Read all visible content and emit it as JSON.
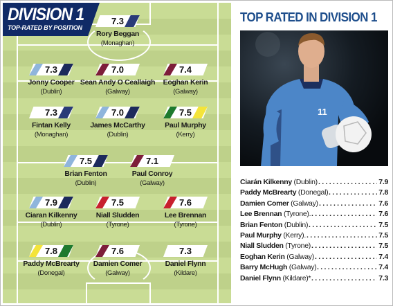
{
  "header": {
    "title": "DIVISION 1",
    "subtitle": "TOP-RATED BY POSITION"
  },
  "colors": {
    "navy": "#102a66",
    "title_blue": "#1e4e8c",
    "pitch_light": "#c9dc95",
    "pitch_dark": "#bed18a"
  },
  "team": [
    {
      "rating": "7.3",
      "name": "Rory Beggan",
      "county": "(Monaghan)",
      "stripe": [
        "#ffffff",
        "#2a3b78"
      ]
    },
    {
      "rating": "7.3",
      "name": "Jonny Cooper",
      "county": "(Dublin)",
      "stripe": [
        "#8fb5dc",
        "#1c2a5c"
      ]
    },
    {
      "rating": "7.0",
      "name": "Sean Andy O Ceallaigh",
      "county": "(Galway)",
      "stripe": [
        "#7d1e3a",
        "#ffffff"
      ]
    },
    {
      "rating": "7.4",
      "name": "Eoghan Kerin",
      "county": "(Galway)",
      "stripe": [
        "#7d1e3a",
        "#ffffff"
      ]
    },
    {
      "rating": "7.3",
      "name": "Fintan Kelly",
      "county": "(Monaghan)",
      "stripe": [
        "#ffffff",
        "#2a3b78"
      ]
    },
    {
      "rating": "7.0",
      "name": "James McCarthy",
      "county": "(Dublin)",
      "stripe": [
        "#8fb5dc",
        "#1c2a5c"
      ]
    },
    {
      "rating": "7.5",
      "name": "Paul Murphy",
      "county": "(Kerry)",
      "stripe": [
        "#1e7a2e",
        "#f4e43a"
      ]
    },
    {
      "rating": "7.5",
      "name": "Brian Fenton",
      "county": "(Dublin)",
      "stripe": [
        "#8fb5dc",
        "#1c2a5c"
      ]
    },
    {
      "rating": "7.1",
      "name": "Paul Conroy",
      "county": "(Galway)",
      "stripe": [
        "#7d1e3a",
        "#ffffff"
      ]
    },
    {
      "rating": "7.9",
      "name": "Ciaran Kilkenny",
      "county": "(Dublin)",
      "stripe": [
        "#8fb5dc",
        "#1c2a5c"
      ]
    },
    {
      "rating": "7.5",
      "name": "Niall Sludden",
      "county": "(Tyrone)",
      "stripe": [
        "#c8202e",
        "#ffffff"
      ]
    },
    {
      "rating": "7.6",
      "name": "Lee Brennan",
      "county": "(Tyrone)",
      "stripe": [
        "#c8202e",
        "#ffffff"
      ]
    },
    {
      "rating": "7.8",
      "name": "Paddy McBrearty",
      "county": "(Donegal)",
      "stripe": [
        "#f4e43a",
        "#1e7a2e"
      ]
    },
    {
      "rating": "7.6",
      "name": "Damien Comer",
      "county": "(Galway)",
      "stripe": [
        "#7d1e3a",
        "#ffffff"
      ]
    },
    {
      "rating": "7.3",
      "name": "Daniel Flynn",
      "county": "(Kildare)",
      "stripe": [
        "#ffffff",
        "#ffffff"
      ]
    }
  ],
  "panel": {
    "title": "TOP RATED IN DIVISION 1",
    "photo_subject": "Dublin footballer in blue jersey number 11 catching a ball",
    "jersey_number": "11",
    "list": [
      {
        "name": "Ciarán Kilkenny",
        "county": "(Dublin)",
        "rating": "7.9"
      },
      {
        "name": "Paddy McBrearty",
        "county": "(Donegal)",
        "rating": "7.8"
      },
      {
        "name": "Damien Comer",
        "county": "(Galway)",
        "rating": "7.6"
      },
      {
        "name": "Lee Brennan",
        "county": "(Tyrone).",
        "rating": "7.6"
      },
      {
        "name": "Brian Fenton",
        "county": "(Dublin)",
        "rating": "7.5"
      },
      {
        "name": "Paul Murphy",
        "county": "(Kerry).",
        "rating": "7.5"
      },
      {
        "name": "Niall Sludden",
        "county": "(Tyrone)",
        "rating": "7.5"
      },
      {
        "name": "Eoghan Kerin",
        "county": "(Galway)",
        "rating": "7.4"
      },
      {
        "name": "Barry McHugh",
        "county": "(Galway)",
        "rating": "7.4"
      },
      {
        "name": "Daniel Flynn",
        "county": "(Kildare)*",
        "rating": "7.3"
      }
    ]
  }
}
